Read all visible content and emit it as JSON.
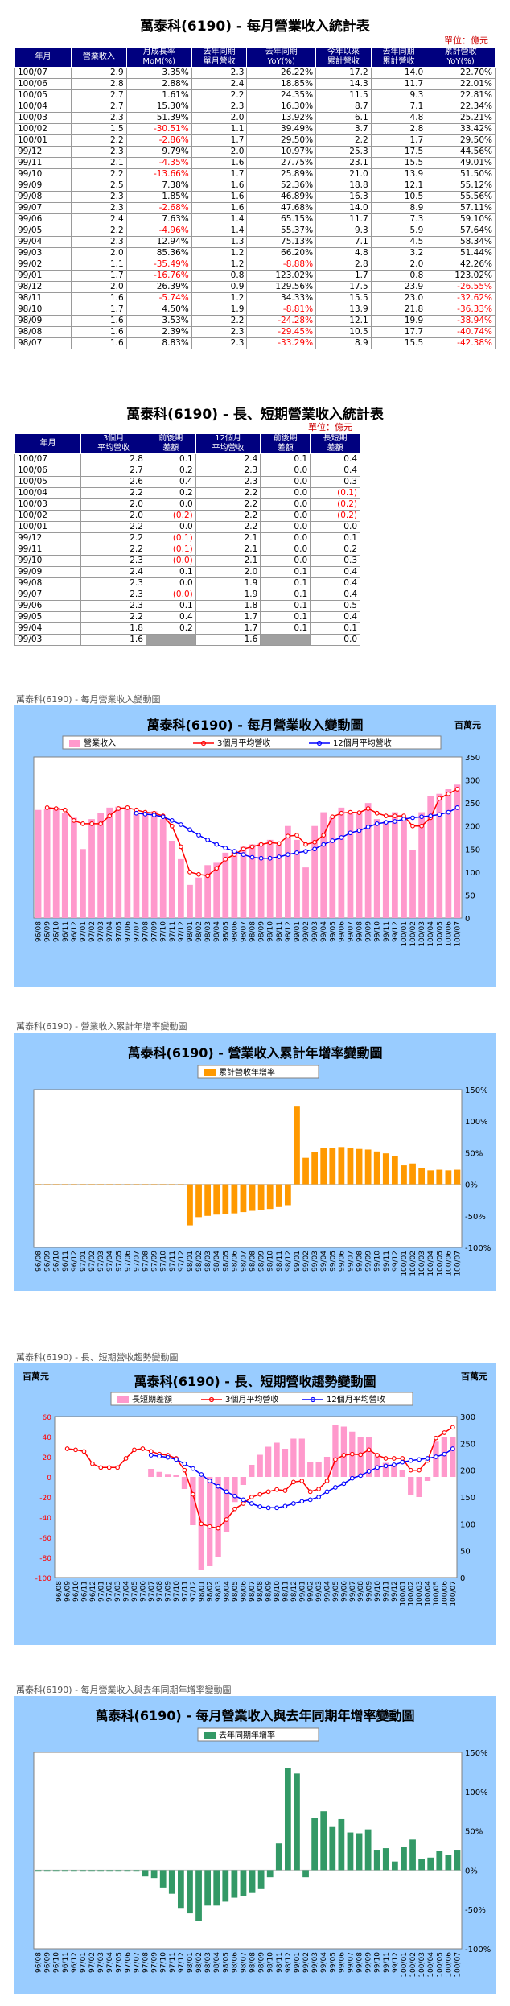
{
  "table1": {
    "title": "萬泰科(6190) - 每月營業收入統計表",
    "unit": "單位：億元",
    "headers": [
      "年月",
      "營業收入",
      "月成長率\nMoM(%)",
      "去年同期\n單月營收",
      "去年同期\nYoY(%)",
      "今年以來\n累計營收",
      "去年同期\n累計營收",
      "累計營收\nYoY(%)"
    ],
    "rows": [
      [
        "100/07",
        "2.9",
        "3.35%",
        "2.3",
        "26.22%",
        "17.2",
        "14.0",
        "22.70%"
      ],
      [
        "100/06",
        "2.8",
        "2.88%",
        "2.4",
        "18.85%",
        "14.3",
        "11.7",
        "22.01%"
      ],
      [
        "100/05",
        "2.7",
        "1.61%",
        "2.2",
        "24.35%",
        "11.5",
        "9.3",
        "22.81%"
      ],
      [
        "100/04",
        "2.7",
        "15.30%",
        "2.3",
        "16.30%",
        "8.7",
        "7.1",
        "22.34%"
      ],
      [
        "100/03",
        "2.3",
        "51.39%",
        "2.0",
        "13.92%",
        "6.1",
        "4.8",
        "25.21%"
      ],
      [
        "100/02",
        "1.5",
        "-30.51%",
        "1.1",
        "39.49%",
        "3.7",
        "2.8",
        "33.42%"
      ],
      [
        "100/01",
        "2.2",
        "-2.86%",
        "1.7",
        "29.50%",
        "2.2",
        "1.7",
        "29.50%"
      ],
      [
        "99/12",
        "2.3",
        "9.79%",
        "2.0",
        "10.97%",
        "25.3",
        "17.5",
        "44.56%"
      ],
      [
        "99/11",
        "2.1",
        "-4.35%",
        "1.6",
        "27.75%",
        "23.1",
        "15.5",
        "49.01%"
      ],
      [
        "99/10",
        "2.2",
        "-13.66%",
        "1.7",
        "25.89%",
        "21.0",
        "13.9",
        "51.50%"
      ],
      [
        "99/09",
        "2.5",
        "7.38%",
        "1.6",
        "52.36%",
        "18.8",
        "12.1",
        "55.12%"
      ],
      [
        "99/08",
        "2.3",
        "1.85%",
        "1.6",
        "46.89%",
        "16.3",
        "10.5",
        "55.56%"
      ],
      [
        "99/07",
        "2.3",
        "-2.68%",
        "1.6",
        "47.68%",
        "14.0",
        "8.9",
        "57.11%"
      ],
      [
        "99/06",
        "2.4",
        "7.63%",
        "1.4",
        "65.15%",
        "11.7",
        "7.3",
        "59.10%"
      ],
      [
        "99/05",
        "2.2",
        "-4.96%",
        "1.4",
        "55.37%",
        "9.3",
        "5.9",
        "57.64%"
      ],
      [
        "99/04",
        "2.3",
        "12.94%",
        "1.3",
        "75.13%",
        "7.1",
        "4.5",
        "58.34%"
      ],
      [
        "99/03",
        "2.0",
        "85.36%",
        "1.2",
        "66.20%",
        "4.8",
        "3.2",
        "51.44%"
      ],
      [
        "99/02",
        "1.1",
        "-35.49%",
        "1.2",
        "-8.88%",
        "2.8",
        "2.0",
        "42.26%"
      ],
      [
        "99/01",
        "1.7",
        "-16.76%",
        "0.8",
        "123.02%",
        "1.7",
        "0.8",
        "123.02%"
      ],
      [
        "98/12",
        "2.0",
        "26.39%",
        "0.9",
        "129.56%",
        "17.5",
        "23.9",
        "-26.55%"
      ],
      [
        "98/11",
        "1.6",
        "-5.74%",
        "1.2",
        "34.33%",
        "15.5",
        "23.0",
        "-32.62%"
      ],
      [
        "98/10",
        "1.7",
        "4.50%",
        "1.9",
        "-8.81%",
        "13.9",
        "21.8",
        "-36.33%"
      ],
      [
        "98/09",
        "1.6",
        "3.53%",
        "2.2",
        "-24.28%",
        "12.1",
        "19.9",
        "-38.94%"
      ],
      [
        "98/08",
        "1.6",
        "2.39%",
        "2.3",
        "-29.45%",
        "10.5",
        "17.7",
        "-40.74%"
      ],
      [
        "98/07",
        "1.6",
        "8.83%",
        "2.3",
        "-33.29%",
        "8.9",
        "15.5",
        "-42.38%"
      ]
    ]
  },
  "table2": {
    "title": "萬泰科(6190) - 長、短期營業收入統計表",
    "unit": "單位：億元",
    "headers": [
      "年月",
      "3個月\n平均營收",
      "前後期\n差額",
      "12個月\n平均營收",
      "前後期\n差額",
      "長短期\n差額"
    ],
    "rows": [
      [
        "100/07",
        "2.8",
        "0.1",
        "2.4",
        "0.1",
        "0.4"
      ],
      [
        "100/06",
        "2.7",
        "0.2",
        "2.3",
        "0.0",
        "0.4"
      ],
      [
        "100/05",
        "2.6",
        "0.4",
        "2.3",
        "0.0",
        "0.3"
      ],
      [
        "100/04",
        "2.2",
        "0.2",
        "2.2",
        "0.0",
        "(0.1)"
      ],
      [
        "100/03",
        "2.0",
        "0.0",
        "2.2",
        "0.0",
        "(0.2)"
      ],
      [
        "100/02",
        "2.0",
        "(0.2)",
        "2.2",
        "0.0",
        "(0.2)"
      ],
      [
        "100/01",
        "2.2",
        "0.0",
        "2.2",
        "0.0",
        "0.0"
      ],
      [
        "99/12",
        "2.2",
        "(0.1)",
        "2.1",
        "0.0",
        "0.1"
      ],
      [
        "99/11",
        "2.2",
        "(0.1)",
        "2.1",
        "0.0",
        "0.2"
      ],
      [
        "99/10",
        "2.3",
        "(0.0)",
        "2.1",
        "0.0",
        "0.3"
      ],
      [
        "99/09",
        "2.4",
        "0.1",
        "2.0",
        "0.1",
        "0.4"
      ],
      [
        "99/08",
        "2.3",
        "0.0",
        "1.9",
        "0.1",
        "0.4"
      ],
      [
        "99/07",
        "2.3",
        "(0.0)",
        "1.9",
        "0.1",
        "0.4"
      ],
      [
        "99/06",
        "2.3",
        "0.1",
        "1.8",
        "0.1",
        "0.5"
      ],
      [
        "99/05",
        "2.2",
        "0.4",
        "1.7",
        "0.1",
        "0.4"
      ],
      [
        "99/04",
        "1.8",
        "0.2",
        "1.7",
        "0.1",
        "0.1"
      ],
      [
        "99/03",
        "1.6",
        "",
        "1.6",
        "",
        "0.0"
      ]
    ]
  },
  "captions": {
    "c1": "萬泰科(6190) - 每月營業收入變動圖",
    "c2": "萬泰科(6190) -  營業收入累計年增率變動圖",
    "c3": "萬泰科(6190) -  長、短期營收趨勢變動圖",
    "c4": "萬泰科(6190) -  每月營業收入與去年同期年增率變動圖"
  },
  "colors": {
    "header_bg": "#00007f",
    "panel_bg": "#99ccff",
    "pink": "#ff99cc",
    "orange": "#ff9900",
    "green": "#339966",
    "red_line": "#ff0000",
    "blue_line": "#0000ff"
  },
  "chart_data": [
    {
      "type": "bar",
      "title": "萬泰科(6190) - 每月營業收入變動圖",
      "unit": "百萬元",
      "legend": [
        "營業收入",
        "3個月平均營收",
        "12個月平均營收"
      ],
      "legend_position": "top",
      "ylim": [
        0,
        350
      ],
      "yticks": [
        0,
        50,
        100,
        150,
        200,
        250,
        300,
        350
      ],
      "categories": [
        "96/08",
        "96/09",
        "96/10",
        "96/11",
        "96/12",
        "97/01",
        "97/02",
        "97/03",
        "97/04",
        "97/05",
        "97/06",
        "97/07",
        "97/08",
        "97/09",
        "97/10",
        "97/11",
        "97/12",
        "98/01",
        "98/02",
        "98/03",
        "98/04",
        "98/05",
        "98/06",
        "98/07",
        "98/08",
        "98/09",
        "98/10",
        "98/11",
        "98/12",
        "99/01",
        "99/02",
        "99/03",
        "99/04",
        "99/05",
        "99/06",
        "99/07",
        "99/08",
        "99/09",
        "99/10",
        "99/11",
        "99/12",
        "100/01",
        "100/02",
        "100/03",
        "100/04",
        "100/05",
        "100/06",
        "100/07"
      ],
      "series": [
        {
          "name": "營業收入",
          "kind": "bar",
          "values": [
            235,
            238,
            240,
            228,
            218,
            150,
            215,
            228,
            240,
            242,
            238,
            230,
            227,
            232,
            215,
            168,
            128,
            72,
            88,
            115,
            120,
            142,
            148,
            155,
            160,
            163,
            170,
            160,
            200,
            170,
            110,
            200,
            230,
            220,
            240,
            228,
            230,
            250,
            215,
            210,
            230,
            220,
            148,
            230,
            265,
            270,
            280,
            290
          ]
        },
        {
          "name": "3個月平均營收",
          "kind": "line",
          "values": [
            null,
            240,
            238,
            235,
            212,
            205,
            205,
            205,
            222,
            238,
            240,
            235,
            230,
            228,
            222,
            200,
            155,
            100,
            95,
            92,
            108,
            128,
            138,
            150,
            155,
            160,
            164,
            162,
            178,
            180,
            160,
            165,
            180,
            220,
            228,
            230,
            229,
            238,
            228,
            222,
            222,
            222,
            200,
            200,
            218,
            260,
            270,
            280
          ]
        },
        {
          "name": "12個月平均營收",
          "kind": "line",
          "values": [
            null,
            null,
            null,
            null,
            null,
            null,
            null,
            null,
            null,
            null,
            null,
            228,
            226,
            224,
            220,
            212,
            203,
            192,
            180,
            170,
            160,
            152,
            145,
            138,
            132,
            130,
            130,
            133,
            138,
            142,
            145,
            150,
            160,
            168,
            175,
            185,
            190,
            198,
            205,
            208,
            210,
            215,
            218,
            220,
            222,
            225,
            230,
            240
          ]
        }
      ]
    },
    {
      "type": "bar",
      "title": "萬泰科(6190) -  營業收入累計年增率變動圖",
      "legend": [
        "累計營收年增率"
      ],
      "legend_position": "top",
      "ylim": [
        -100,
        150
      ],
      "yticks": [
        -100,
        -50,
        0,
        50,
        100,
        150
      ],
      "ytick_labels": [
        "-100%",
        "-50%",
        "0%",
        "50%",
        "100%",
        "150%"
      ],
      "categories": [
        "96/08",
        "96/09",
        "96/10",
        "96/11",
        "96/12",
        "97/01",
        "97/02",
        "97/03",
        "97/04",
        "97/05",
        "97/06",
        "97/07",
        "97/08",
        "97/09",
        "97/10",
        "97/11",
        "97/12",
        "98/01",
        "98/02",
        "98/03",
        "98/04",
        "98/05",
        "98/06",
        "98/07",
        "98/08",
        "98/09",
        "98/10",
        "98/11",
        "98/12",
        "99/01",
        "99/02",
        "99/03",
        "99/04",
        "99/05",
        "99/06",
        "99/07",
        "99/08",
        "99/09",
        "99/10",
        "99/11",
        "99/12",
        "100/01",
        "100/02",
        "100/03",
        "100/04",
        "100/05",
        "100/06",
        "100/07"
      ],
      "series": [
        {
          "name": "累計營收年增率",
          "values": [
            0,
            0,
            0,
            0,
            0,
            0,
            0,
            0,
            0,
            0,
            0,
            0,
            0,
            0,
            0,
            0,
            0,
            -65,
            -52,
            -50,
            -48,
            -47,
            -46,
            -44,
            -42,
            -41,
            -39,
            -36,
            -33,
            123,
            42,
            51,
            58,
            58,
            59,
            57,
            56,
            55,
            52,
            49,
            45,
            30,
            33,
            25,
            22,
            23,
            22,
            23
          ]
        }
      ]
    },
    {
      "type": "bar",
      "title": "萬泰科(6190) -  長、短期營收趨勢變動圖",
      "unit_left": "百萬元",
      "unit_right": "百萬元",
      "legend": [
        "長短期差額",
        "3個月平均營收",
        "12個月平均營收"
      ],
      "legend_position": "top",
      "ylim_left": [
        -100,
        60
      ],
      "yticks_left": [
        -100,
        -80,
        -60,
        -40,
        -20,
        0,
        20,
        40,
        60
      ],
      "ylim_right": [
        0,
        300
      ],
      "yticks_right": [
        0,
        50,
        100,
        150,
        200,
        250,
        300
      ],
      "categories": [
        "96/08",
        "96/09",
        "96/10",
        "96/11",
        "96/12",
        "97/01",
        "97/02",
        "97/03",
        "97/04",
        "97/05",
        "97/06",
        "97/07",
        "97/08",
        "97/09",
        "97/10",
        "97/11",
        "97/12",
        "98/01",
        "98/02",
        "98/03",
        "98/04",
        "98/05",
        "98/06",
        "98/07",
        "98/08",
        "98/09",
        "98/10",
        "98/11",
        "98/12",
        "99/01",
        "99/02",
        "99/03",
        "99/04",
        "99/05",
        "99/06",
        "99/07",
        "99/08",
        "99/09",
        "99/10",
        "99/11",
        "99/12",
        "100/01",
        "100/02",
        "100/03",
        "100/04",
        "100/05",
        "100/06",
        "100/07"
      ],
      "series": [
        {
          "name": "長短期差額",
          "kind": "bar",
          "axis": "left",
          "values": [
            null,
            null,
            null,
            null,
            null,
            null,
            null,
            null,
            null,
            null,
            null,
            8,
            5,
            3,
            2,
            -12,
            -48,
            -92,
            -88,
            -80,
            -55,
            -25,
            -8,
            12,
            22,
            30,
            34,
            28,
            38,
            38,
            15,
            15,
            20,
            52,
            50,
            45,
            40,
            40,
            22,
            14,
            12,
            7,
            -18,
            -20,
            -4,
            35,
            40,
            40
          ]
        },
        {
          "name": "3個月平均營收",
          "kind": "line",
          "axis": "right",
          "values": [
            null,
            240,
            238,
            235,
            212,
            205,
            205,
            205,
            222,
            238,
            240,
            235,
            230,
            228,
            222,
            200,
            155,
            100,
            95,
            92,
            108,
            128,
            138,
            150,
            155,
            160,
            164,
            162,
            178,
            180,
            160,
            165,
            180,
            220,
            228,
            230,
            229,
            238,
            228,
            222,
            222,
            222,
            200,
            200,
            218,
            260,
            270,
            280
          ]
        },
        {
          "name": "12個月平均營收",
          "kind": "line",
          "axis": "right",
          "values": [
            null,
            null,
            null,
            null,
            null,
            null,
            null,
            null,
            null,
            null,
            null,
            228,
            226,
            224,
            220,
            212,
            203,
            192,
            180,
            170,
            160,
            152,
            145,
            138,
            132,
            130,
            130,
            133,
            138,
            142,
            145,
            150,
            160,
            168,
            175,
            185,
            190,
            198,
            205,
            208,
            210,
            215,
            218,
            220,
            222,
            225,
            230,
            240
          ]
        }
      ]
    },
    {
      "type": "bar",
      "title": "萬泰科(6190) -  每月營業收入與去年同期年增率變動圖",
      "legend": [
        "去年同期年增率"
      ],
      "legend_position": "top",
      "ylim": [
        -100,
        150
      ],
      "yticks": [
        -100,
        -50,
        0,
        50,
        100,
        150
      ],
      "ytick_labels": [
        "-100%",
        "-50%",
        "0%",
        "50%",
        "100%",
        "150%"
      ],
      "categories": [
        "96/08",
        "96/09",
        "96/10",
        "96/11",
        "96/12",
        "97/01",
        "97/02",
        "97/03",
        "97/04",
        "97/05",
        "97/06",
        "97/07",
        "97/08",
        "97/09",
        "97/10",
        "97/11",
        "97/12",
        "98/01",
        "98/02",
        "98/03",
        "98/04",
        "98/05",
        "98/06",
        "98/07",
        "98/08",
        "98/09",
        "98/10",
        "98/11",
        "98/12",
        "99/01",
        "99/02",
        "99/03",
        "99/04",
        "99/05",
        "99/06",
        "99/07",
        "99/08",
        "99/09",
        "99/10",
        "99/11",
        "99/12",
        "100/01",
        "100/02",
        "100/03",
        "100/04",
        "100/05",
        "100/06",
        "100/07"
      ],
      "series": [
        {
          "name": "去年同期年增率",
          "values": [
            0,
            0,
            0,
            0,
            0,
            0,
            0,
            0,
            0,
            0,
            0,
            0,
            -8,
            -10,
            -22,
            -30,
            -48,
            -55,
            -65,
            -45,
            -45,
            -40,
            -35,
            -33,
            -29,
            -24,
            -9,
            34,
            130,
            123,
            -9,
            66,
            75,
            55,
            65,
            48,
            47,
            52,
            26,
            28,
            11,
            30,
            39,
            14,
            16,
            24,
            19,
            26
          ]
        }
      ]
    }
  ]
}
